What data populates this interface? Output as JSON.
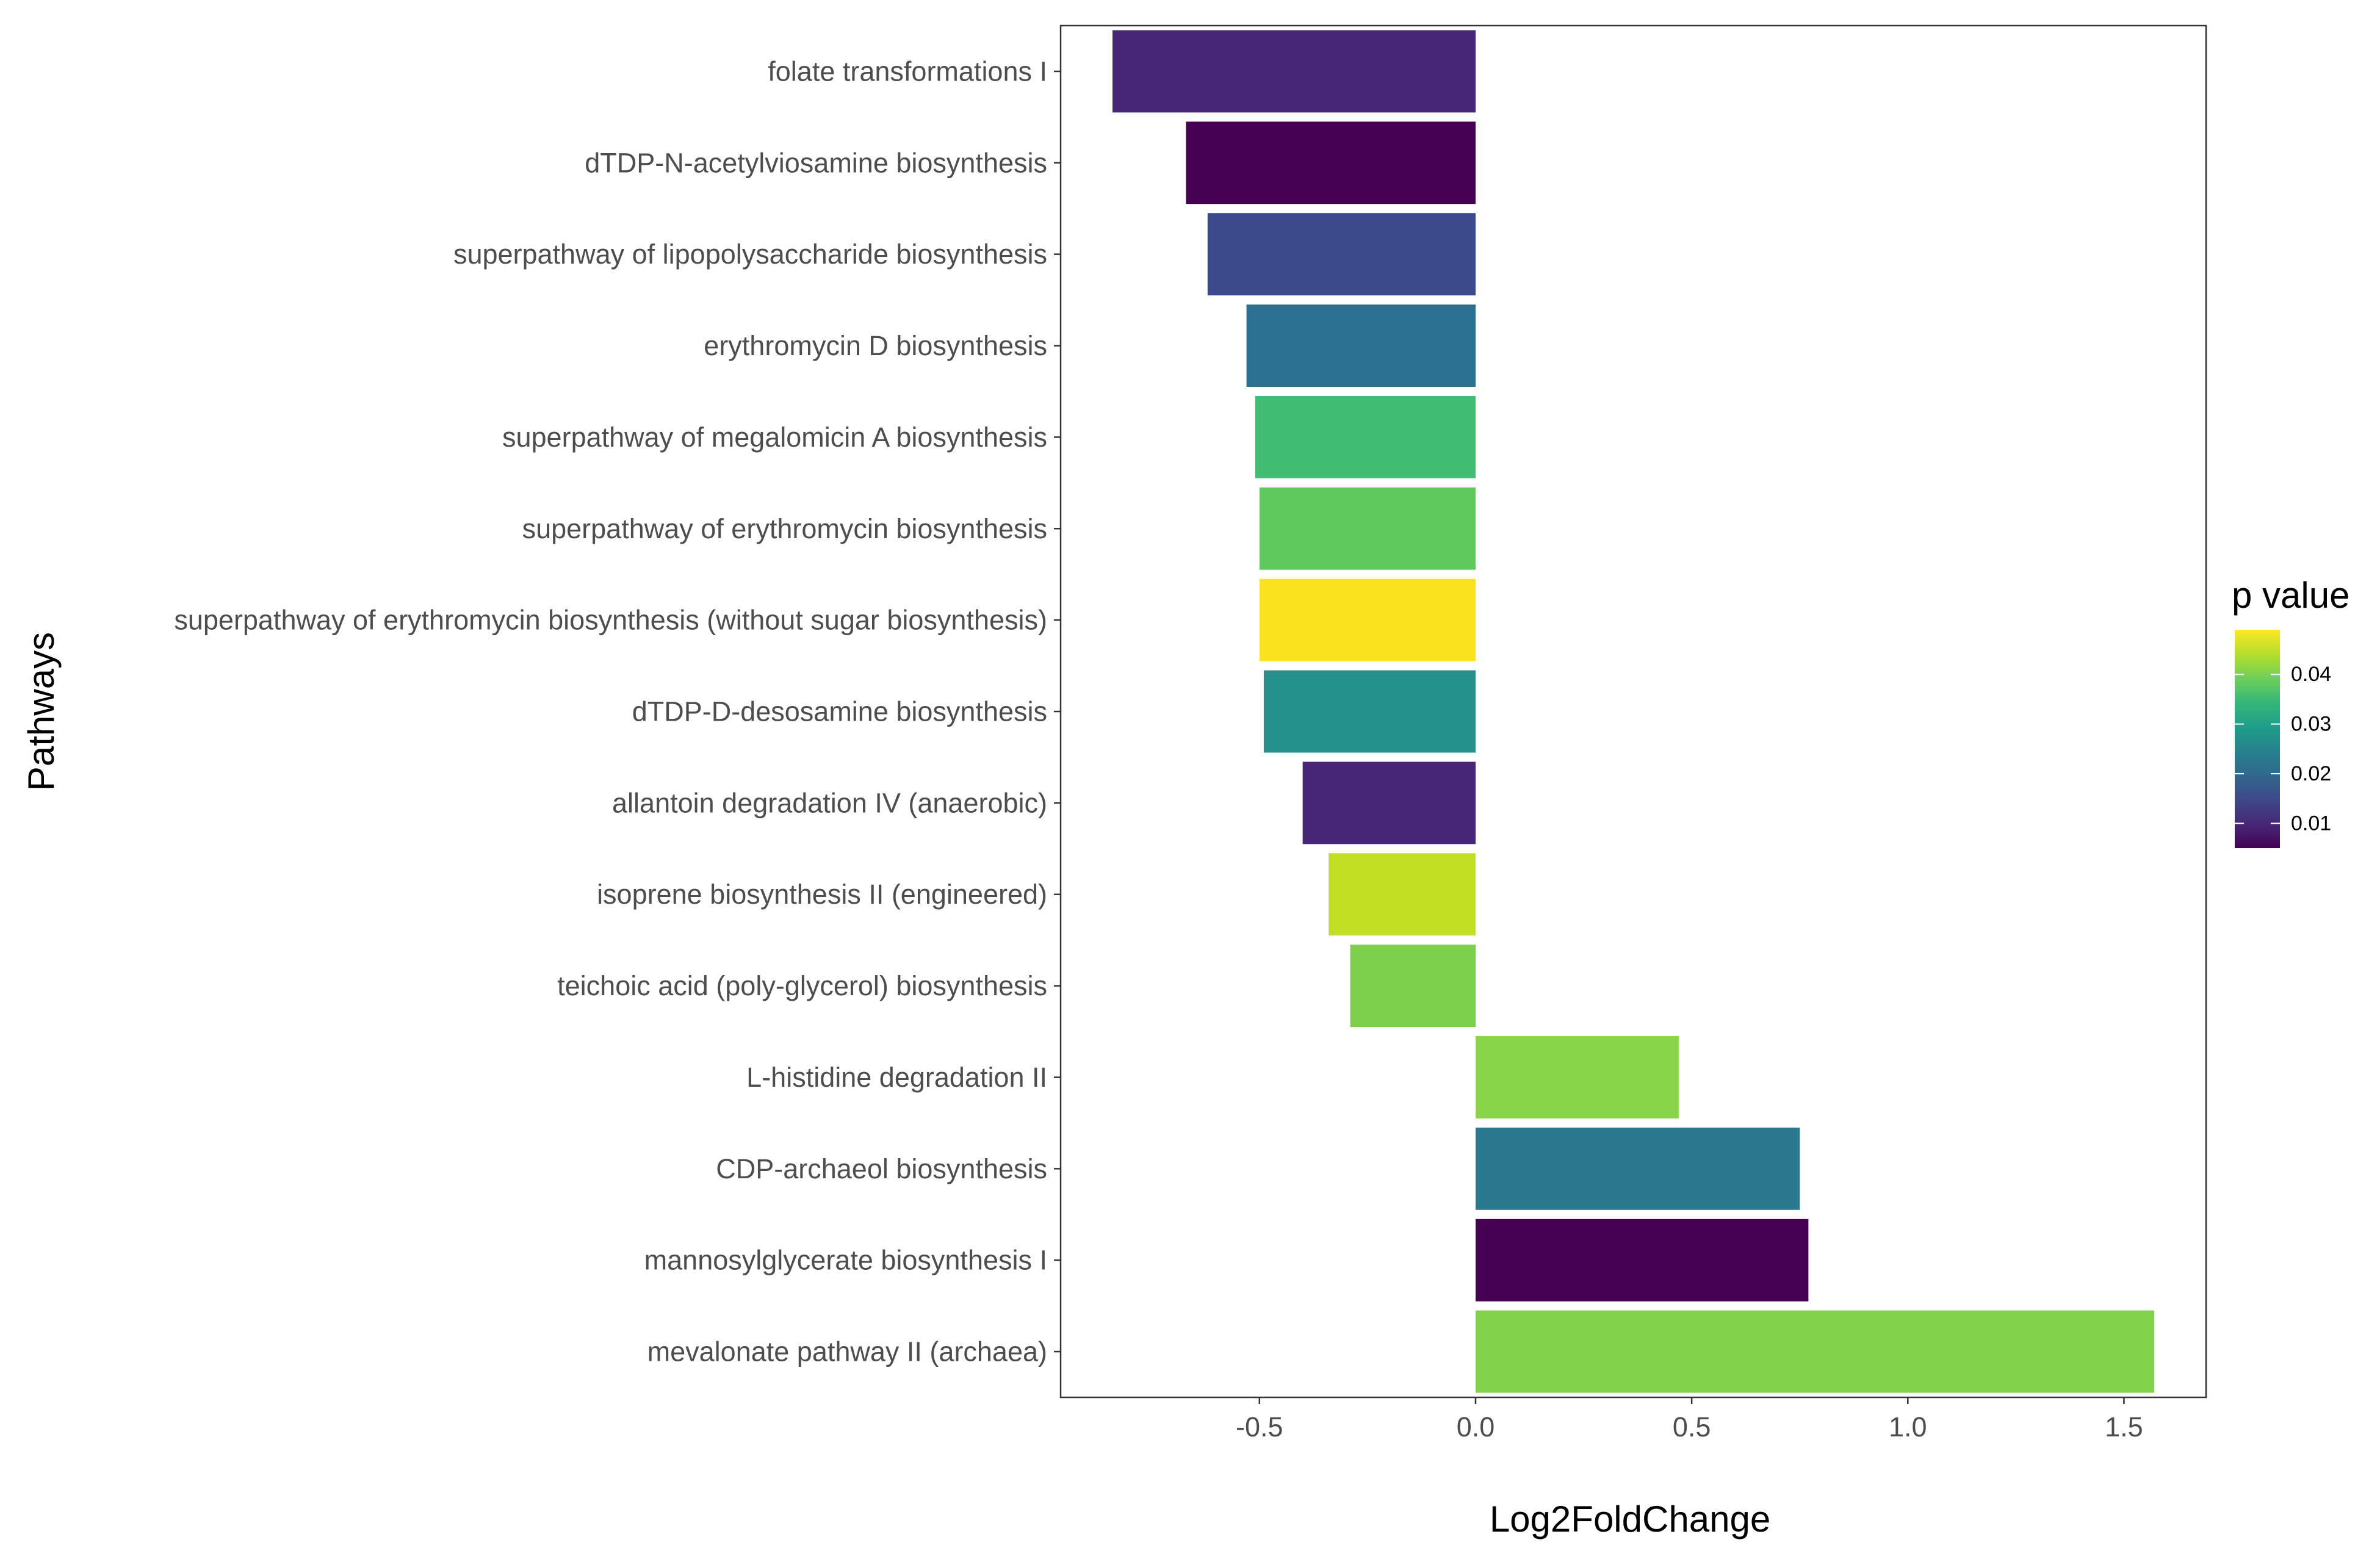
{
  "chart_data": {
    "type": "bar",
    "orientation": "horizontal",
    "xlabel": "Log2FoldChange",
    "ylabel": "Pathways",
    "xlim": [
      -0.96,
      1.69
    ],
    "x_ticks": [
      -0.5,
      0.0,
      0.5,
      1.0,
      1.5
    ],
    "x_tick_labels": [
      "-0.5",
      "0.0",
      "0.5",
      "1.0",
      "1.5"
    ],
    "grid": false,
    "legend_position": "right",
    "legend": {
      "title": "p value",
      "ticks": [
        0.01,
        0.02,
        0.03,
        0.04
      ],
      "tick_labels": [
        "0.01",
        "0.02",
        "0.03",
        "0.04"
      ],
      "range": [
        0.005,
        0.049
      ],
      "colormap": "viridis"
    },
    "categories": [
      "folate transformations I",
      "dTDP-N-acetylviosamine biosynthesis",
      "superpathway of lipopolysaccharide biosynthesis",
      "erythromycin D biosynthesis",
      "superpathway of megalomicin A biosynthesis",
      "superpathway of erythromycin biosynthesis",
      "superpathway of erythromycin biosynthesis (without sugar biosynthesis)",
      "dTDP-D-desosamine biosynthesis",
      "allantoin degradation IV (anaerobic)",
      "isoprene biosynthesis II (engineered)",
      "teichoic acid (poly-glycerol) biosynthesis",
      "L-histidine degradation II",
      "CDP-archaeol biosynthesis",
      "mannosylglycerate biosynthesis I",
      "mevalonate pathway II (archaea)"
    ],
    "values": [
      -0.84,
      -0.67,
      -0.62,
      -0.53,
      -0.51,
      -0.5,
      -0.5,
      -0.49,
      -0.4,
      -0.34,
      -0.29,
      0.47,
      0.75,
      0.77,
      1.57
    ],
    "p_values": [
      0.008,
      0.005,
      0.014,
      0.022,
      0.036,
      0.039,
      0.048,
      0.027,
      0.008,
      0.046,
      0.041,
      0.041,
      0.023,
      0.005,
      0.041
    ],
    "colors": [
      "#482677",
      "#440154",
      "#3b4a8a",
      "#29718e",
      "#40bd72",
      "#60c95e",
      "#f9e21e",
      "#24918c",
      "#482677",
      "#c2df23",
      "#7dd04c",
      "#89d548",
      "#29788e",
      "#440154",
      "#82d24b"
    ]
  }
}
